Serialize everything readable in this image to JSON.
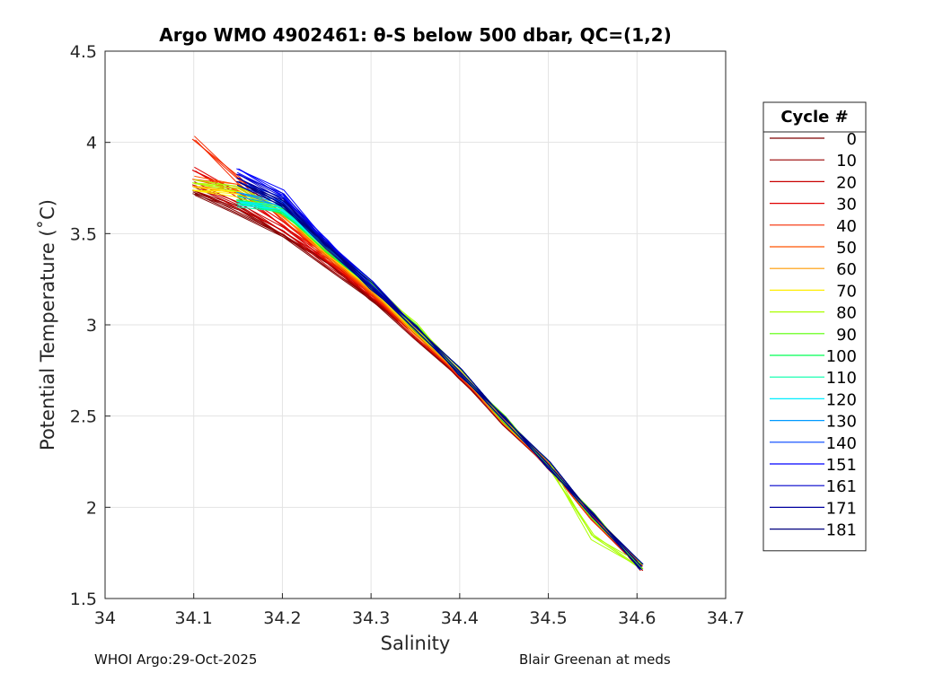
{
  "chart_data": {
    "type": "line",
    "title": "Argo WMO 4902461: θ-S below 500 dbar,  QC=(1,2)",
    "xlabel": "Salinity",
    "ylabel": "Potential Temperature (˚C)",
    "xlim": [
      34.0,
      34.7
    ],
    "ylim": [
      1.5,
      4.5
    ],
    "xticks": [
      "34",
      "34.1",
      "34.2",
      "34.3",
      "34.4",
      "34.5",
      "34.6",
      "34.7"
    ],
    "yticks": [
      "1.5",
      "2",
      "2.5",
      "3",
      "3.5",
      "4",
      "4.5"
    ],
    "grid": true,
    "legend_title": "Cycle #",
    "legend_position": "outside-right",
    "x": [
      34.605,
      34.55,
      34.5,
      34.45,
      34.4,
      34.35,
      34.3,
      34.25,
      34.2,
      34.15,
      34.1
    ],
    "series": [
      {
        "name": "0",
        "color": "#7f0000",
        "values": [
          1.66,
          1.95,
          2.22,
          2.47,
          2.71,
          2.94,
          3.14,
          3.33,
          3.49,
          3.62,
          3.72
        ]
      },
      {
        "name": "10",
        "color": "#990000",
        "values": [
          1.66,
          1.95,
          2.22,
          2.47,
          2.71,
          2.95,
          3.15,
          3.34,
          3.5,
          3.64,
          3.74
        ]
      },
      {
        "name": "20",
        "color": "#c80000",
        "values": [
          1.66,
          1.95,
          2.22,
          2.48,
          2.72,
          2.95,
          3.16,
          3.35,
          3.52,
          3.66,
          3.77
        ]
      },
      {
        "name": "30",
        "color": "#e00000",
        "values": [
          1.67,
          1.95,
          2.22,
          2.48,
          2.72,
          2.96,
          3.17,
          3.37,
          3.55,
          3.72,
          3.85
        ]
      },
      {
        "name": "40",
        "color": "#f52a00",
        "values": [
          1.67,
          1.95,
          2.22,
          2.48,
          2.72,
          2.96,
          3.17,
          3.38,
          3.58,
          3.8,
          4.02
        ]
      },
      {
        "name": "50",
        "color": "#ff5500",
        "values": [
          1.67,
          1.96,
          2.23,
          2.48,
          2.73,
          2.97,
          3.18,
          3.39,
          3.6,
          3.76,
          3.8
        ]
      },
      {
        "name": "60",
        "color": "#ff9a00",
        "values": [
          1.67,
          1.96,
          2.23,
          2.48,
          2.73,
          2.97,
          3.19,
          3.4,
          3.6,
          3.74,
          3.76
        ]
      },
      {
        "name": "70",
        "color": "#ffee00",
        "values": [
          1.67,
          1.96,
          2.23,
          2.49,
          2.74,
          2.98,
          3.2,
          3.41,
          3.62,
          3.72,
          3.74
        ]
      },
      {
        "name": "80",
        "color": "#aaff00",
        "values": [
          1.67,
          1.84,
          2.23,
          2.49,
          2.74,
          3.0,
          3.22,
          3.42,
          3.62,
          3.75,
          3.78
        ]
      },
      {
        "name": "90",
        "color": "#55ff00",
        "values": [
          1.67,
          1.96,
          2.23,
          2.49,
          2.74,
          2.99,
          3.21,
          3.42,
          3.62,
          3.7,
          null
        ]
      },
      {
        "name": "100",
        "color": "#00ff55",
        "values": [
          1.67,
          1.96,
          2.23,
          2.49,
          2.74,
          2.99,
          3.21,
          3.42,
          3.62,
          3.68,
          null
        ]
      },
      {
        "name": "110",
        "color": "#00ffaa",
        "values": [
          1.67,
          1.96,
          2.23,
          2.49,
          2.74,
          2.99,
          3.21,
          3.43,
          3.63,
          3.66,
          null
        ]
      },
      {
        "name": "120",
        "color": "#00eeff",
        "values": [
          1.67,
          1.96,
          2.23,
          2.49,
          2.74,
          2.99,
          3.21,
          3.43,
          3.64,
          3.67,
          null
        ]
      },
      {
        "name": "130",
        "color": "#0099ff",
        "values": [
          1.67,
          1.96,
          2.23,
          2.49,
          2.74,
          2.99,
          3.22,
          3.44,
          3.66,
          3.72,
          null
        ]
      },
      {
        "name": "140",
        "color": "#0044ff",
        "values": [
          1.67,
          1.96,
          2.23,
          2.49,
          2.74,
          2.99,
          3.22,
          3.45,
          3.68,
          3.78,
          null
        ]
      },
      {
        "name": "151",
        "color": "#0000ff",
        "values": [
          1.67,
          1.96,
          2.23,
          2.49,
          2.74,
          2.99,
          3.22,
          3.46,
          3.72,
          3.85,
          null
        ]
      },
      {
        "name": "161",
        "color": "#0000cc",
        "values": [
          1.67,
          1.96,
          2.23,
          2.49,
          2.74,
          2.99,
          3.22,
          3.45,
          3.7,
          3.82,
          null
        ]
      },
      {
        "name": "171",
        "color": "#0000a0",
        "values": [
          1.67,
          1.96,
          2.23,
          2.49,
          2.74,
          2.99,
          3.21,
          3.44,
          3.67,
          3.8,
          null
        ]
      },
      {
        "name": "181",
        "color": "#00007f",
        "values": [
          1.67,
          1.96,
          2.23,
          2.49,
          2.74,
          2.99,
          3.21,
          3.43,
          3.66,
          3.78,
          null
        ]
      }
    ]
  },
  "footer": {
    "left": "WHOI Argo:29-Oct-2025",
    "right": "Blair Greenan at meds"
  }
}
